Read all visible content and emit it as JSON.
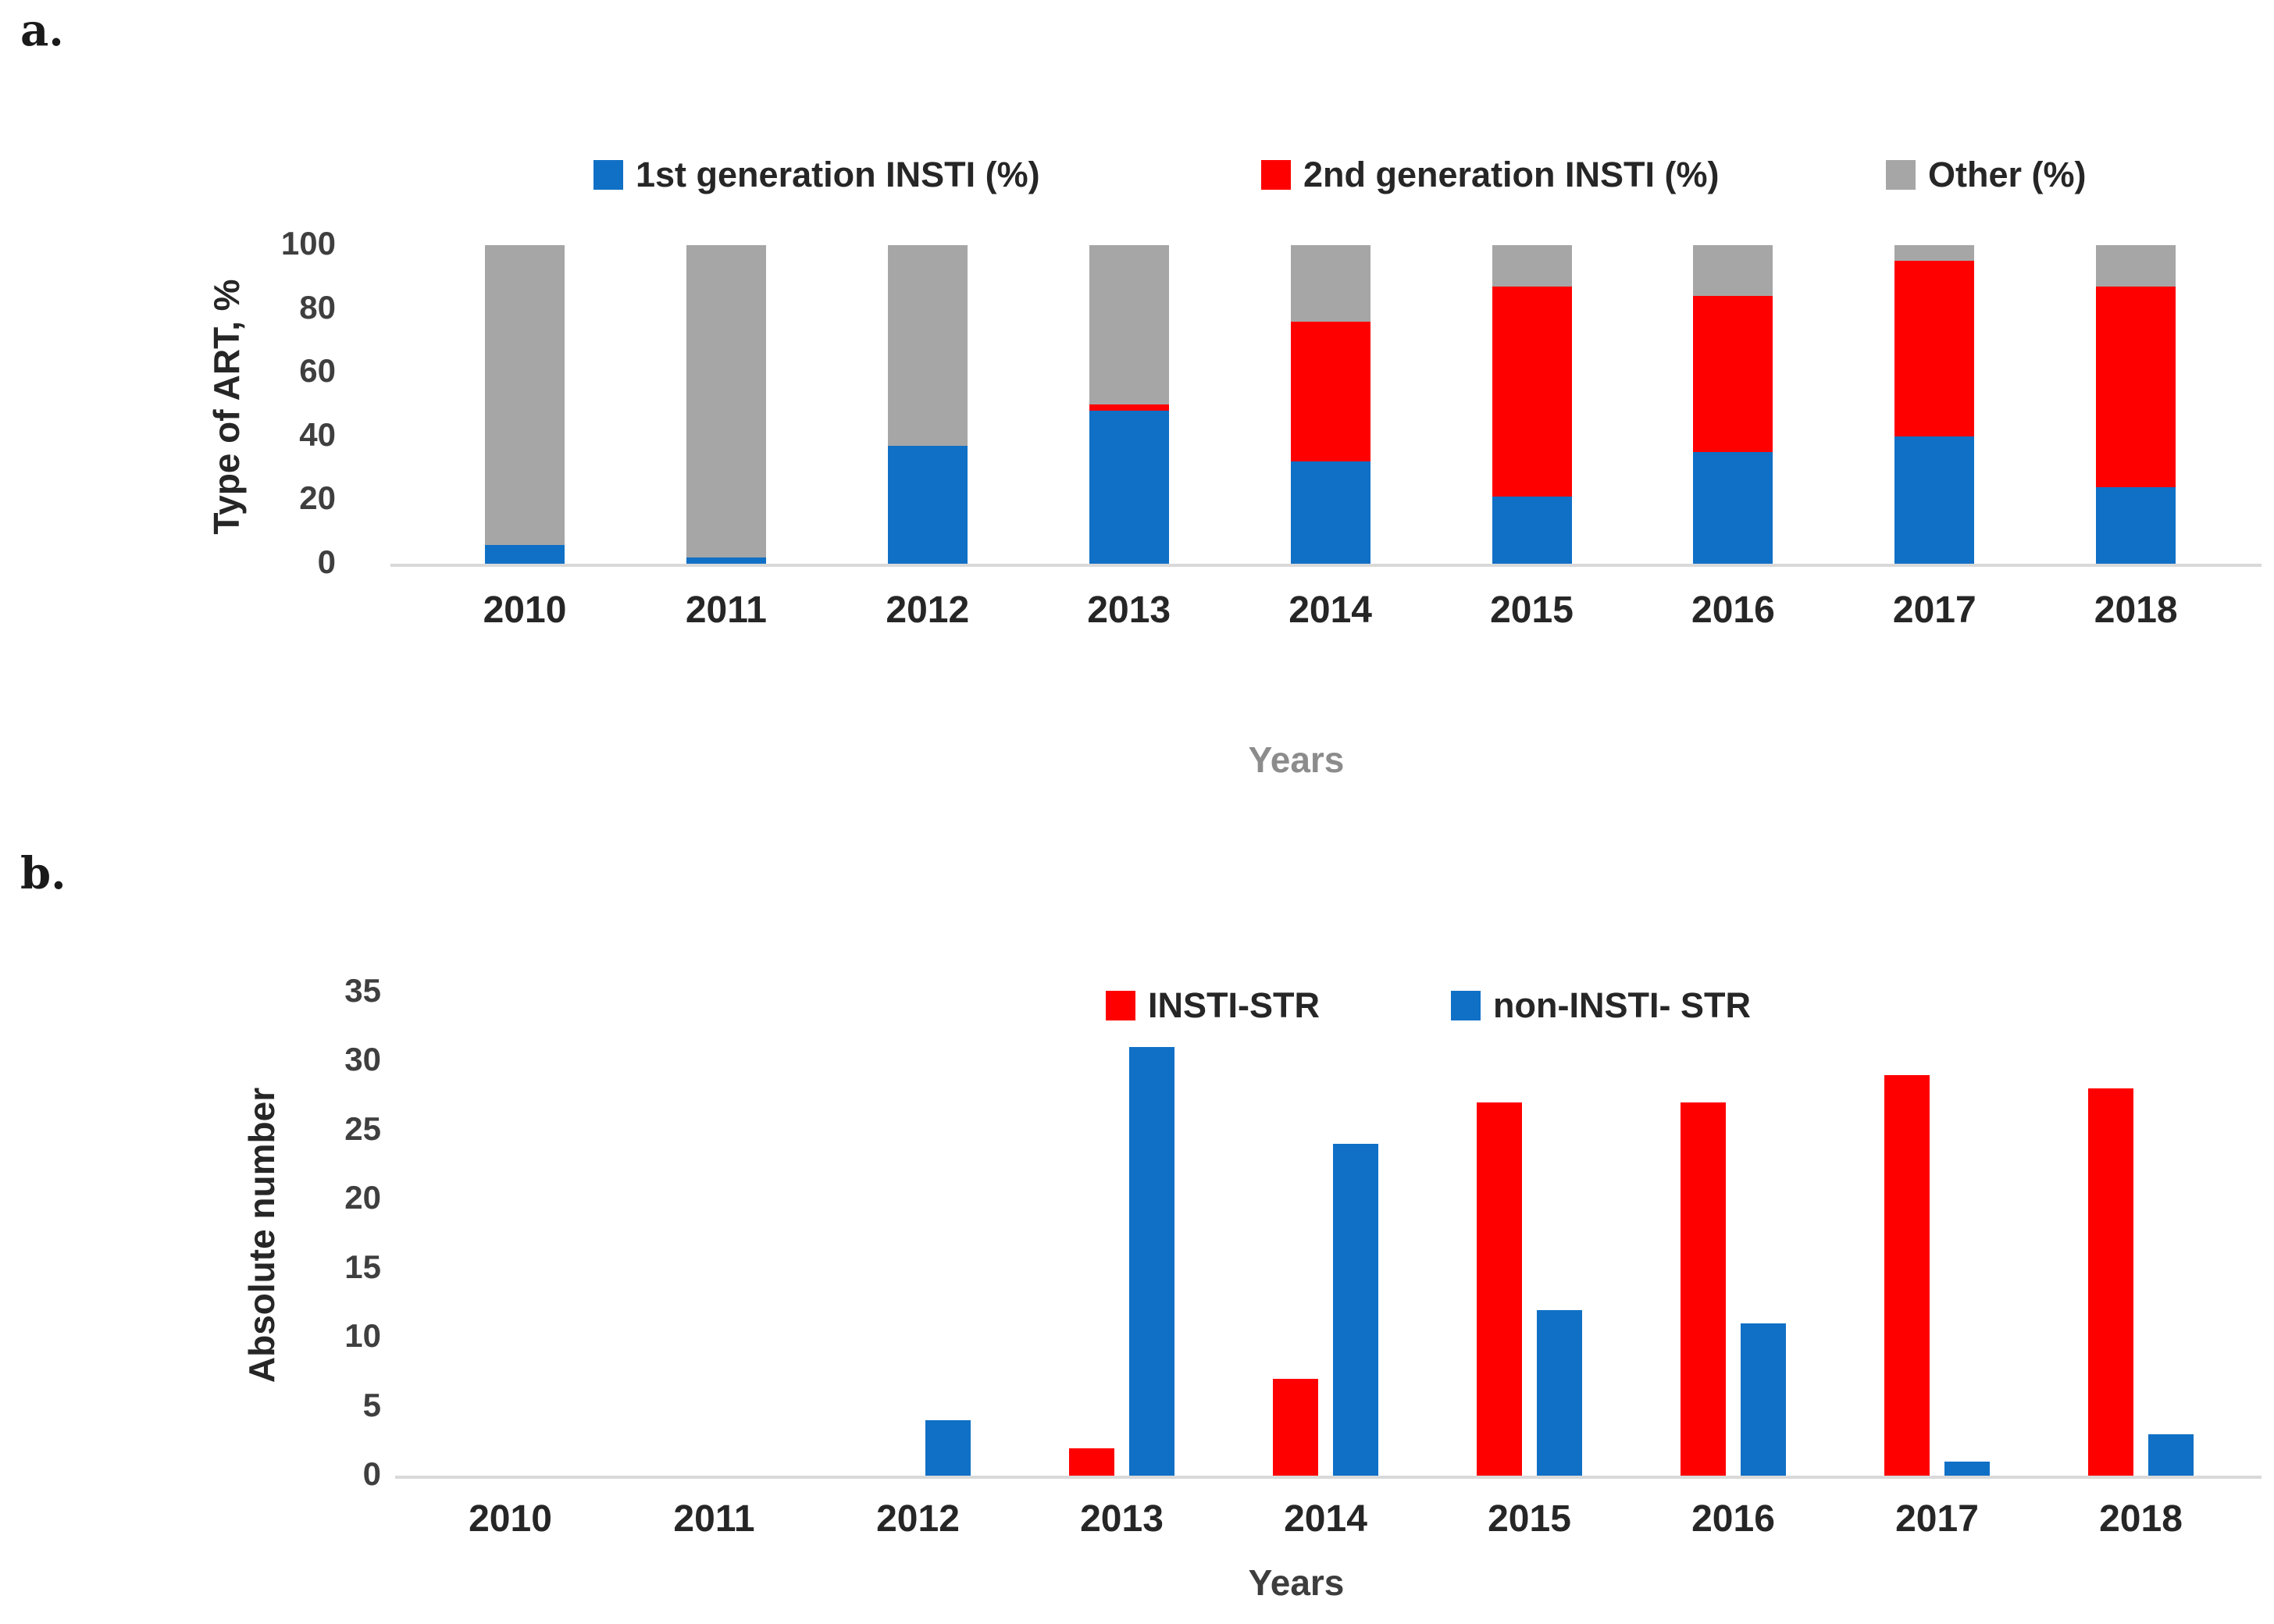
{
  "panels": [
    {
      "label": "a."
    },
    {
      "label": "b."
    }
  ],
  "chart_data": [
    {
      "type": "bar",
      "stacked": true,
      "categories": [
        "2010",
        "2011",
        "2012",
        "2013",
        "2014",
        "2015",
        "2016",
        "2017",
        "2018"
      ],
      "series": [
        {
          "name": "1st generation INSTI (%)",
          "color": "#1070C6",
          "values": [
            6,
            2,
            37,
            48,
            32,
            21,
            35,
            40,
            24
          ]
        },
        {
          "name": "2nd generation INSTI (%)",
          "color": "#FF0000",
          "values": [
            0,
            0,
            0,
            2,
            44,
            66,
            49,
            55,
            63
          ]
        },
        {
          "name": "Other (%)",
          "color": "#A6A6A6",
          "values": [
            94,
            98,
            63,
            50,
            24,
            13,
            16,
            5,
            13
          ]
        }
      ],
      "xlabel": "Years",
      "ylabel": "Type of ART, %",
      "ylim": [
        0,
        100
      ],
      "yticks": [
        0,
        20,
        40,
        60,
        80,
        100
      ],
      "legend_position": "top",
      "grid": false
    },
    {
      "type": "bar",
      "stacked": false,
      "categories": [
        "2010",
        "2011",
        "2012",
        "2013",
        "2014",
        "2015",
        "2016",
        "2017",
        "2018"
      ],
      "series": [
        {
          "name": "INSTI-STR",
          "color": "#FF0000",
          "values": [
            0,
            0,
            0,
            2,
            7,
            27,
            27,
            29,
            28
          ]
        },
        {
          "name": "non-INSTI- STR",
          "color": "#1070C6",
          "values": [
            0,
            0,
            4,
            31,
            24,
            12,
            11,
            1,
            3
          ]
        }
      ],
      "xlabel": "Years",
      "ylabel": "Absolute number",
      "ylim": [
        0,
        35
      ],
      "yticks": [
        0,
        5,
        10,
        15,
        20,
        25,
        30,
        35
      ],
      "legend_position": "top-right",
      "grid": false
    }
  ]
}
